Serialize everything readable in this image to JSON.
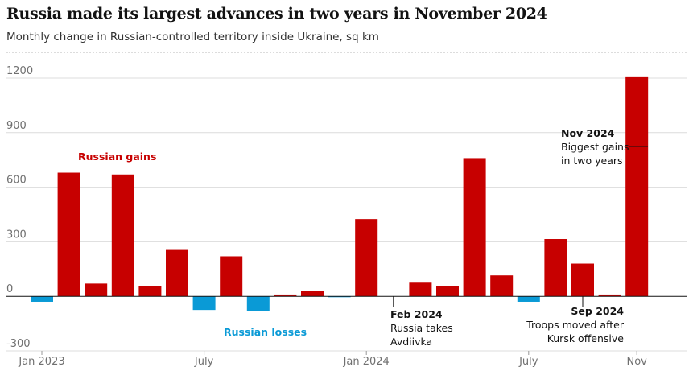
{
  "header": {
    "title": "Russia made its largest advances in two years in November 2024",
    "subtitle": "Monthly change in Russian-controlled territory inside Ukraine, sq km"
  },
  "colors": {
    "gain": "#c70000",
    "loss": "#0a9ad6",
    "grid": "#dcdcdc",
    "axis_text": "#707070"
  },
  "chart_data": {
    "type": "bar",
    "categories": [
      "Jan 2023",
      "Feb 2023",
      "Mar 2023",
      "Apr 2023",
      "May 2023",
      "Jun 2023",
      "Jul 2023",
      "Aug 2023",
      "Sep 2023",
      "Oct 2023",
      "Nov 2023",
      "Dec 2023",
      "Jan 2024",
      "Feb 2024",
      "Mar 2024",
      "Apr 2024",
      "May 2024",
      "Jun 2024",
      "Jul 2024",
      "Aug 2024",
      "Sep 2024",
      "Oct 2024",
      "Nov 2024"
    ],
    "values": [
      -30,
      680,
      70,
      670,
      55,
      255,
      -75,
      220,
      -80,
      10,
      30,
      -5,
      425,
      0,
      75,
      55,
      760,
      115,
      -30,
      315,
      180,
      10,
      1205
    ],
    "ylim": [
      -300,
      1200
    ],
    "yticks": [
      "1200",
      "900",
      "600",
      "300",
      "0",
      "-300"
    ],
    "ytick_values": [
      1200,
      900,
      600,
      300,
      0,
      -300
    ],
    "xtick_labels": [
      {
        "label": "Jan 2023",
        "index": 0
      },
      {
        "label": "July",
        "index": 6
      },
      {
        "label": "Jan 2024",
        "index": 12
      },
      {
        "label": "July",
        "index": 18
      },
      {
        "label": "Nov",
        "index": 22
      }
    ],
    "grid": true,
    "legend": {
      "gains": "Russian gains",
      "losses": "Russian losses"
    },
    "annotations": [
      {
        "id": "feb2024",
        "bold": "Feb 2024",
        "lines": [
          "Russia takes",
          "Avdiivka"
        ],
        "index": 13
      },
      {
        "id": "sep2024",
        "bold": "Sep 2024",
        "lines": [
          "Troops moved after",
          "Kursk offensive"
        ],
        "index": 20
      },
      {
        "id": "nov2024",
        "bold": "Nov 2024",
        "lines": [
          "Biggest gains",
          "in two years"
        ],
        "index": 22
      }
    ]
  }
}
